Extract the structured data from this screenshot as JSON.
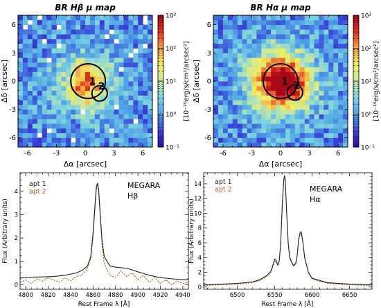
{
  "figure": {
    "maps": [
      {
        "title": "BR Hβ μ map",
        "xlabel": "Δα [arcsec]",
        "ylabel": "Δδ [arcsec]",
        "cbar_label": "[10⁻¹⁶erg/s/cm²/arcsec²]",
        "aperture_labels": [
          "1",
          "2"
        ]
      },
      {
        "title": "BR Hα μ map",
        "xlabel": "Δα [arcsec]",
        "ylabel": "Δδ [arcsec]",
        "cbar_label": "[10⁻¹⁶erg/s/cm²/arcsec²]",
        "aperture_labels": [
          "1",
          "2"
        ]
      }
    ],
    "spectra": [
      {
        "instrument": "MEGARA",
        "line": "Hβ",
        "xlabel": "Rest Frame λ [Å]",
        "ylabel": "Flux (Arbitrary units)"
      },
      {
        "instrument": "MEGARA",
        "line": "Hα",
        "xlabel": "Rest Frame λ [Å]",
        "ylabel": "Flux (Arbitrary units)"
      }
    ]
  },
  "colors": {
    "apt1": "#222222",
    "apt2": "#b5581f",
    "cmap": [
      "#2a0a9a",
      "#3a44d8",
      "#4fa0e6",
      "#7fd4e0",
      "#c8e6a0",
      "#f2ef60",
      "#f5a040",
      "#e03020",
      "#a8071a"
    ]
  },
  "chart_data": [
    {
      "type": "heatmap",
      "title": "BR Hβ μ map",
      "xlabel": "Δα [arcsec]",
      "ylabel": "Δδ [arcsec]",
      "xlim": [
        -7,
        7
      ],
      "ylim": [
        -7,
        7
      ],
      "xticks": [
        "-6",
        "-3",
        "0",
        "3",
        "6"
      ],
      "yticks": [
        "-6",
        "-3",
        "0",
        "3",
        "6"
      ],
      "colorbar": {
        "label": "[10⁻¹⁶erg/s/cm²/arcsec²]",
        "scale": "log",
        "range": [
          0.1,
          1000
        ],
        "ticks": [
          "10⁻¹",
          "10⁰",
          "10¹",
          "10²",
          "10³"
        ]
      },
      "peak_value": 60,
      "apertures": [
        {
          "label": "1",
          "center": [
            0.3,
            0
          ],
          "radius": 1.8
        },
        {
          "label": "2",
          "center": [
            1.5,
            -1.3
          ],
          "radius": 0.8
        }
      ]
    },
    {
      "type": "heatmap",
      "title": "BR Hα μ map",
      "xlabel": "Δα [arcsec]",
      "ylabel": "Δδ [arcsec]",
      "xlim": [
        -7,
        7
      ],
      "ylim": [
        -7,
        7
      ],
      "xticks": [
        "-6",
        "-3",
        "0",
        "3",
        "6"
      ],
      "yticks": [
        "-6",
        "-3",
        "0",
        "3",
        "6"
      ],
      "colorbar": {
        "label": "[10⁻¹⁶erg/s/cm²/arcsec²]",
        "scale": "log",
        "range": [
          0.1,
          1000
        ],
        "ticks": [
          "10⁻¹",
          "10⁰",
          "10¹",
          "10²",
          "10³"
        ]
      },
      "peak_value": 400,
      "apertures": [
        {
          "label": "1",
          "center": [
            0,
            0
          ],
          "radius": 1.8
        },
        {
          "label": "2",
          "center": [
            1.5,
            -1.2
          ],
          "radius": 0.8
        }
      ]
    },
    {
      "type": "line",
      "title": "",
      "instrument": "MEGARA",
      "line": "Hβ",
      "xlabel": "Rest Frame λ [Å]",
      "ylabel": "Flux (Arbitrary units)",
      "xlim": [
        4795,
        4945
      ],
      "ylim": [
        -0.2,
        4.8
      ],
      "xticks": [
        4800,
        4820,
        4840,
        4860,
        4880,
        4900,
        4920,
        4940
      ],
      "yticks": [
        0,
        1,
        2,
        3,
        4
      ],
      "legend": [
        "apt 1",
        "apt 2"
      ],
      "legend_position": "top-left",
      "series": [
        {
          "name": "apt 1",
          "x": [
            4795,
            4805,
            4815,
            4825,
            4835,
            4845,
            4850,
            4855,
            4858,
            4860,
            4862,
            4863,
            4864,
            4865,
            4866,
            4868,
            4870,
            4875,
            4880,
            4890,
            4900,
            4910,
            4920,
            4930,
            4945
          ],
          "y": [
            0.3,
            0.32,
            0.33,
            0.35,
            0.4,
            0.5,
            0.6,
            0.8,
            1.2,
            2.2,
            3.6,
            4.2,
            4.35,
            4.1,
            3.3,
            1.9,
            1.2,
            0.8,
            0.75,
            0.7,
            0.55,
            0.4,
            0.3,
            0.25,
            0.2
          ]
        },
        {
          "name": "apt 2",
          "x": [
            4795,
            4800,
            4805,
            4810,
            4815,
            4820,
            4825,
            4830,
            4835,
            4840,
            4845,
            4850,
            4855,
            4858,
            4860,
            4862,
            4863,
            4864,
            4865,
            4866,
            4868,
            4870,
            4875,
            4880,
            4885,
            4890,
            4895,
            4900,
            4905,
            4910,
            4915,
            4920,
            4925,
            4930,
            4935,
            4940,
            4945
          ],
          "y": [
            0.1,
            0.2,
            0.05,
            0.25,
            0.15,
            0.3,
            0.2,
            0.1,
            0.3,
            0.15,
            0.35,
            0.4,
            0.7,
            1.1,
            2.0,
            3.4,
            4.1,
            4.3,
            4.0,
            3.2,
            1.7,
            0.9,
            0.4,
            0.3,
            0.6,
            0.35,
            0.5,
            0.2,
            0.4,
            0.1,
            0.3,
            0.05,
            0.2,
            0.0,
            0.15,
            0.05,
            0.1
          ]
        }
      ]
    },
    {
      "type": "line",
      "title": "",
      "instrument": "MEGARA",
      "line": "Hα",
      "xlabel": "Rest Frame λ [Å]",
      "ylabel": "Flux (Arbitrary units)",
      "xlim": [
        6455,
        6680
      ],
      "ylim": [
        -0.3,
        15.5
      ],
      "xticks": [
        6500,
        6550,
        6600,
        6650
      ],
      "yticks": [
        0,
        2,
        4,
        6,
        8,
        10,
        12,
        14
      ],
      "legend": [
        "apt 1",
        "apt 2"
      ],
      "legend_position": "top-left",
      "series": [
        {
          "name": "apt 1",
          "x": [
            6455,
            6480,
            6500,
            6520,
            6530,
            6540,
            6545,
            6548,
            6550,
            6552,
            6554,
            6556,
            6558,
            6560,
            6562,
            6563,
            6564,
            6566,
            6568,
            6570,
            6575,
            6578,
            6580,
            6582,
            6584,
            6585,
            6586,
            6588,
            6590,
            6595,
            6600,
            6620,
            6650,
            6680
          ],
          "y": [
            0.3,
            0.4,
            0.5,
            0.7,
            1.0,
            1.6,
            2.2,
            3.1,
            3.8,
            3.6,
            3.0,
            3.5,
            6.0,
            11.0,
            14.5,
            15.1,
            14.6,
            10.0,
            6.0,
            4.0,
            2.9,
            3.2,
            4.3,
            6.5,
            7.4,
            7.5,
            7.2,
            5.8,
            4.0,
            2.0,
            1.2,
            0.6,
            0.4,
            0.3
          ]
        },
        {
          "name": "apt 2",
          "x": [
            6455,
            6480,
            6500,
            6520,
            6530,
            6540,
            6545,
            6548,
            6550,
            6552,
            6554,
            6556,
            6558,
            6560,
            6562,
            6563,
            6564,
            6566,
            6568,
            6570,
            6575,
            6578,
            6580,
            6582,
            6584,
            6585,
            6586,
            6588,
            6590,
            6595,
            6600,
            6620,
            6650,
            6680
          ],
          "y": [
            0.2,
            0.3,
            0.4,
            0.6,
            0.9,
            1.5,
            2.0,
            2.9,
            3.6,
            3.4,
            2.9,
            3.4,
            5.8,
            10.8,
            14.2,
            14.9,
            14.4,
            9.8,
            5.8,
            3.9,
            2.8,
            3.1,
            4.2,
            6.3,
            7.2,
            7.3,
            7.0,
            5.6,
            3.9,
            1.9,
            1.1,
            0.5,
            0.3,
            0.2
          ]
        }
      ]
    }
  ]
}
